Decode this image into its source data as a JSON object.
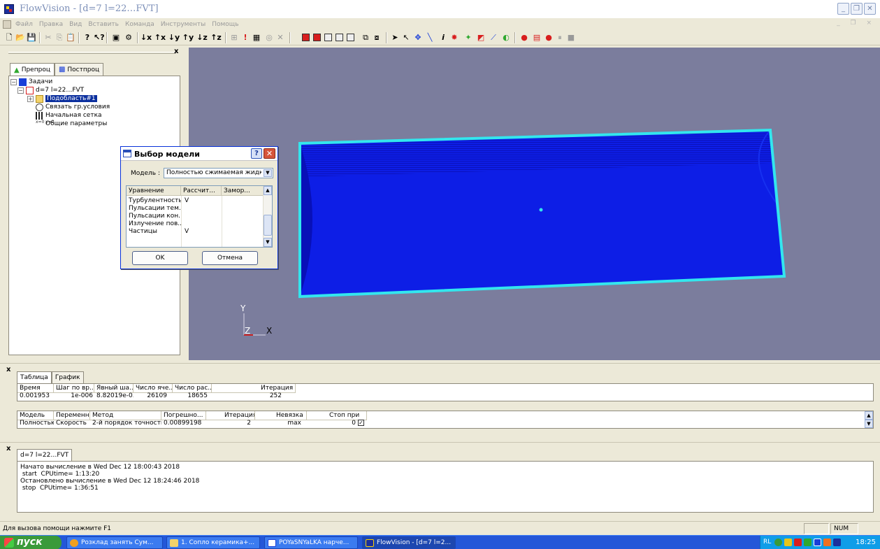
{
  "window": {
    "title": "FlowVision - [d=7 l=22…FVT]",
    "controls": [
      "_",
      "❐",
      "✕"
    ]
  },
  "menu": {
    "items": [
      "Файл",
      "Правка",
      "Вид",
      "Вставить",
      "Команда",
      "Инструменты",
      "Помощь"
    ],
    "mdi_controls": "_ ❐ ×"
  },
  "toolbar": {
    "axis_buttons": [
      "↓x",
      "↑x",
      "↓y",
      "↑y",
      "↓z",
      "↑z"
    ],
    "colors": {
      "red": "#d81e1e",
      "yellow": "#e8c51a",
      "blue": "#1a3fd8",
      "green": "#2fa82f"
    }
  },
  "left_panel": {
    "close": "x",
    "tabs": [
      "Препроц",
      "Постпроц"
    ],
    "tree": [
      {
        "label": "Задачи",
        "expander": "−"
      },
      {
        "label": "d=7 l=22…FVT",
        "expander": "−"
      },
      {
        "label": "Подобласть#1",
        "expander": "+"
      },
      {
        "label": "Связать гр.условия",
        "expander": ""
      },
      {
        "label": "Начальная сетка",
        "expander": ""
      },
      {
        "label": "Общие параметры",
        "expander": ""
      }
    ]
  },
  "viewport": {
    "background": "#7b7d9d",
    "mesh_color": "#0d1ee6",
    "edge_color": "#33e6ee",
    "axes": {
      "y": "Y",
      "z": "Z",
      "x": "X"
    }
  },
  "dialog": {
    "title": "Выбор модели",
    "help": "?",
    "close": "✕",
    "model_label": "Модель :",
    "model_value": "Полностью сжимаемая жидкость",
    "columns": [
      "Уравнение",
      "Рассчит...",
      "Замор..."
    ],
    "rows": [
      {
        "eq": "Турбулентность",
        "calc": "V"
      },
      {
        "eq": "Пульсации тем...",
        "calc": ""
      },
      {
        "eq": "Пульсации кон...",
        "calc": ""
      },
      {
        "eq": "Излучение пов...",
        "calc": ""
      },
      {
        "eq": "Частицы",
        "calc": "V"
      }
    ],
    "ok": "OK",
    "cancel": "Отмена"
  },
  "table_panel": {
    "close": "x",
    "tabs": [
      "Таблица",
      "График"
    ],
    "top_headers": [
      "Время",
      "Шаг по вр...",
      "Явный ша...",
      "Число яче...",
      "Число рас...",
      "Итерация"
    ],
    "top_values": [
      "0.001953",
      "1e-006",
      "8.82019e-0...",
      "26109",
      "18655",
      "252"
    ],
    "bottom_headers": [
      "Модель",
      "Переменн...",
      "Метод",
      "Погрешно...",
      "Итерация",
      "Невязка",
      "Стоп при"
    ],
    "bottom_values": [
      "Полностью ...",
      "Скорость",
      "2-й порядок точности",
      "0.00899198",
      "2",
      "max",
      "0"
    ]
  },
  "log_panel": {
    "close": "x",
    "tab": "d=7 l=22…FVT",
    "lines": [
      "Начато вычисление в Wed Dec 12 18:00:43 2018",
      " start  CPUtime= 1:13:20",
      "Остановлено вычисление в Wed Dec 12 18:24:46 2018",
      " stop  CPUtime= 1:36:51"
    ]
  },
  "status": {
    "text": "Для вызова помощи нажмите F1",
    "num": "NUM"
  },
  "taskbar": {
    "start": "пуск",
    "tasks": [
      {
        "label": "Розклад занять Сум...",
        "color": "#f0a020"
      },
      {
        "label": "1. Сопло керамика+...",
        "color": "#f3d36a"
      },
      {
        "label": "POYaSNYaLKA нарче...",
        "color": "#ffffff"
      },
      {
        "label": "FlowVision - [d=7 l=2...",
        "color": "#1c2f9c"
      }
    ],
    "lang": "RL",
    "clock": "18:25"
  }
}
